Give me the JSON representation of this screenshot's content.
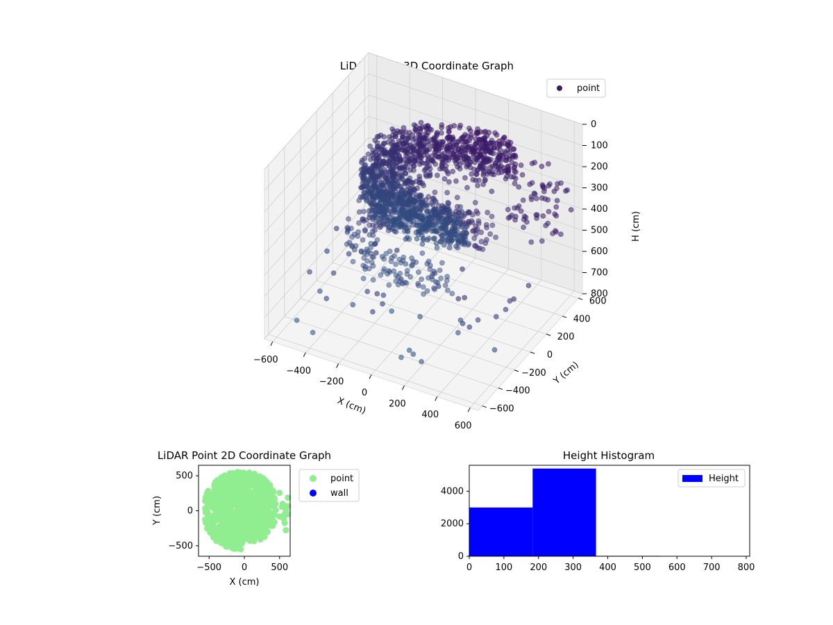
{
  "chart_data": [
    {
      "type": "scatter3d",
      "title": "LiDAR Point 3D Coordinate Graph",
      "xlabel": "X (cm)",
      "ylabel": "Y (cm)",
      "zlabel": "H (cm)",
      "xlim": [
        -650,
        650
      ],
      "ylim": [
        -650,
        650
      ],
      "zlim": [
        0,
        800
      ],
      "z_inverted": true,
      "xticks": [
        -600,
        -400,
        -200,
        0,
        200,
        400,
        600
      ],
      "yticks": [
        -600,
        -400,
        -200,
        0,
        200,
        400,
        600
      ],
      "zticks": [
        0,
        100,
        200,
        300,
        400,
        500,
        600,
        700,
        800
      ],
      "legend": [
        {
          "label": "point",
          "color": "#3b1e66"
        }
      ],
      "legend_position": "top-right",
      "grid": true,
      "colormap": "viridis (by depth)",
      "series": [
        {
          "name": "point",
          "description": "dense ring of points at height ~200-300 cm, lower sparse ring at ~400-500 cm, scattered points toward 800 cm",
          "approx_count": 8400
        }
      ]
    },
    {
      "type": "scatter",
      "title": "LiDAR Point 2D Coordinate Graph",
      "xlabel": "X (cm)",
      "ylabel": "Y (cm)",
      "xlim": [
        -650,
        650
      ],
      "ylim": [
        -650,
        650
      ],
      "xticks": [
        -500,
        0,
        500
      ],
      "yticks": [
        -500,
        0,
        500
      ],
      "legend": [
        {
          "label": "point",
          "color": "#90ee90"
        },
        {
          "label": "wall",
          "color": "#0000ff"
        }
      ],
      "legend_position": "outside-right"
    },
    {
      "type": "bar",
      "title": "Height Histogram",
      "bins": [
        {
          "from": 0,
          "to": 183,
          "count": 3000
        },
        {
          "from": 183,
          "to": 366,
          "count": 5400
        },
        {
          "from": 366,
          "to": 549,
          "count": 25
        },
        {
          "from": 549,
          "to": 732,
          "count": 20
        },
        {
          "from": 732,
          "to": 810,
          "count": 15
        }
      ],
      "xlim": [
        0,
        810
      ],
      "ylim": [
        0,
        5600
      ],
      "xticks": [
        0,
        100,
        200,
        300,
        400,
        500,
        600,
        700,
        800
      ],
      "yticks": [
        0,
        2000,
        4000
      ],
      "legend": [
        {
          "label": "Height",
          "color": "#0000ff"
        }
      ],
      "legend_position": "top-right",
      "bar_color": "#0000ff"
    }
  ]
}
